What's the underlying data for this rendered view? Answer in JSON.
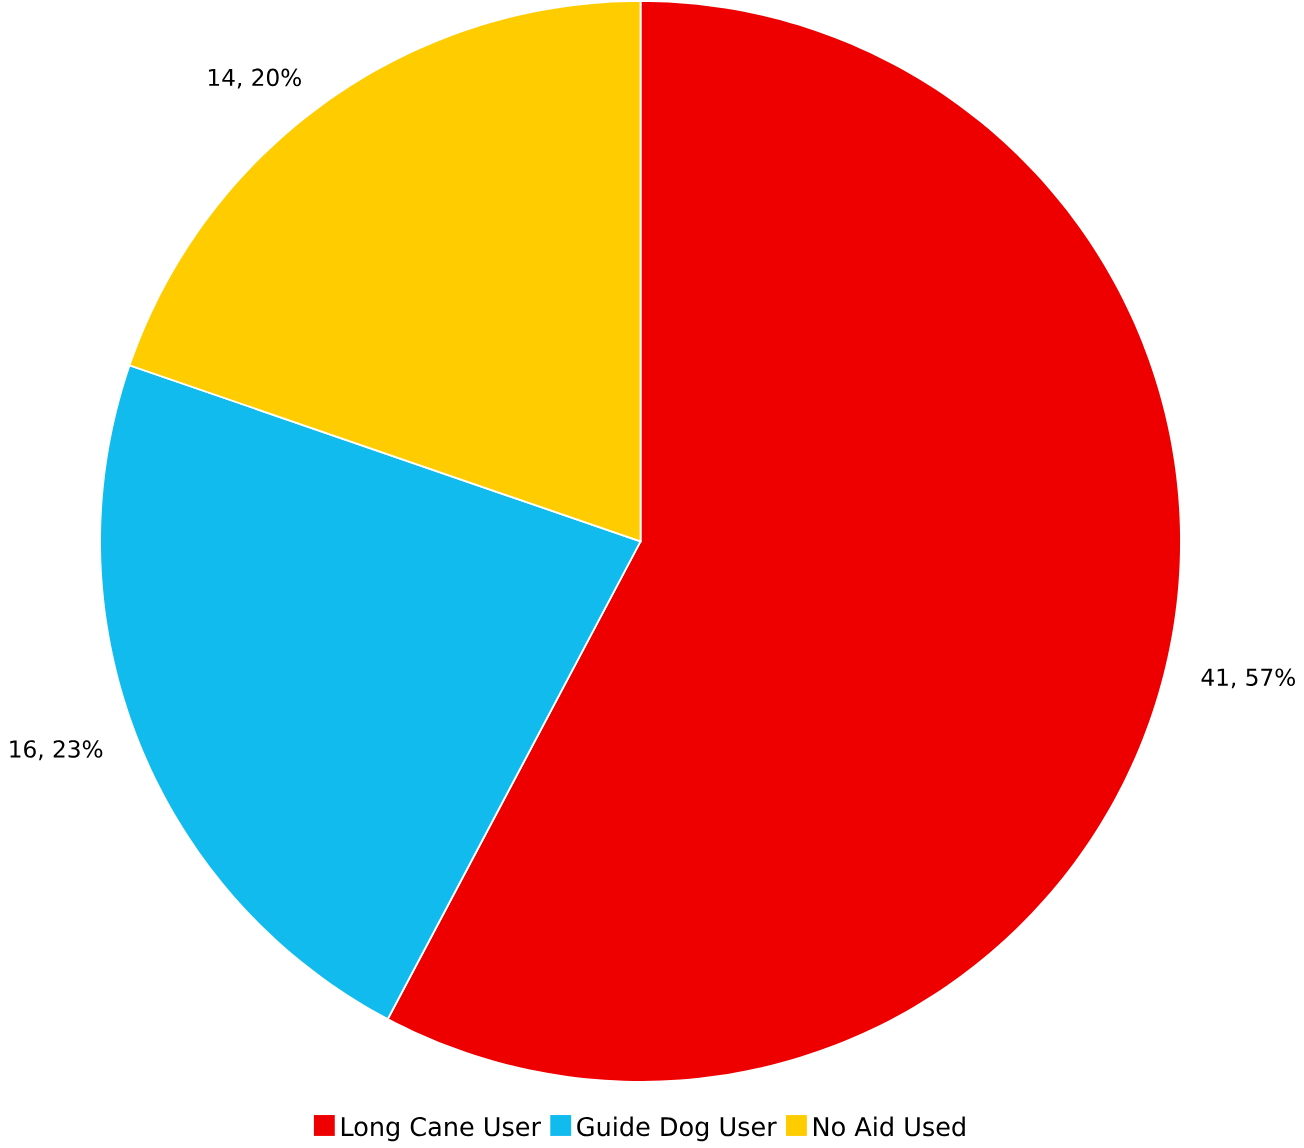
{
  "chart_data": {
    "type": "pie",
    "categories": [
      "Long Cane User",
      "Guide Dog User",
      "No Aid Used"
    ],
    "values": [
      41,
      16,
      14
    ],
    "colors": [
      "#ee0000",
      "#11bbee",
      "#ffcc00"
    ],
    "value_labels": [
      "41, 57%",
      "16, 23%",
      "14, 20%"
    ],
    "legend": "bottom"
  }
}
